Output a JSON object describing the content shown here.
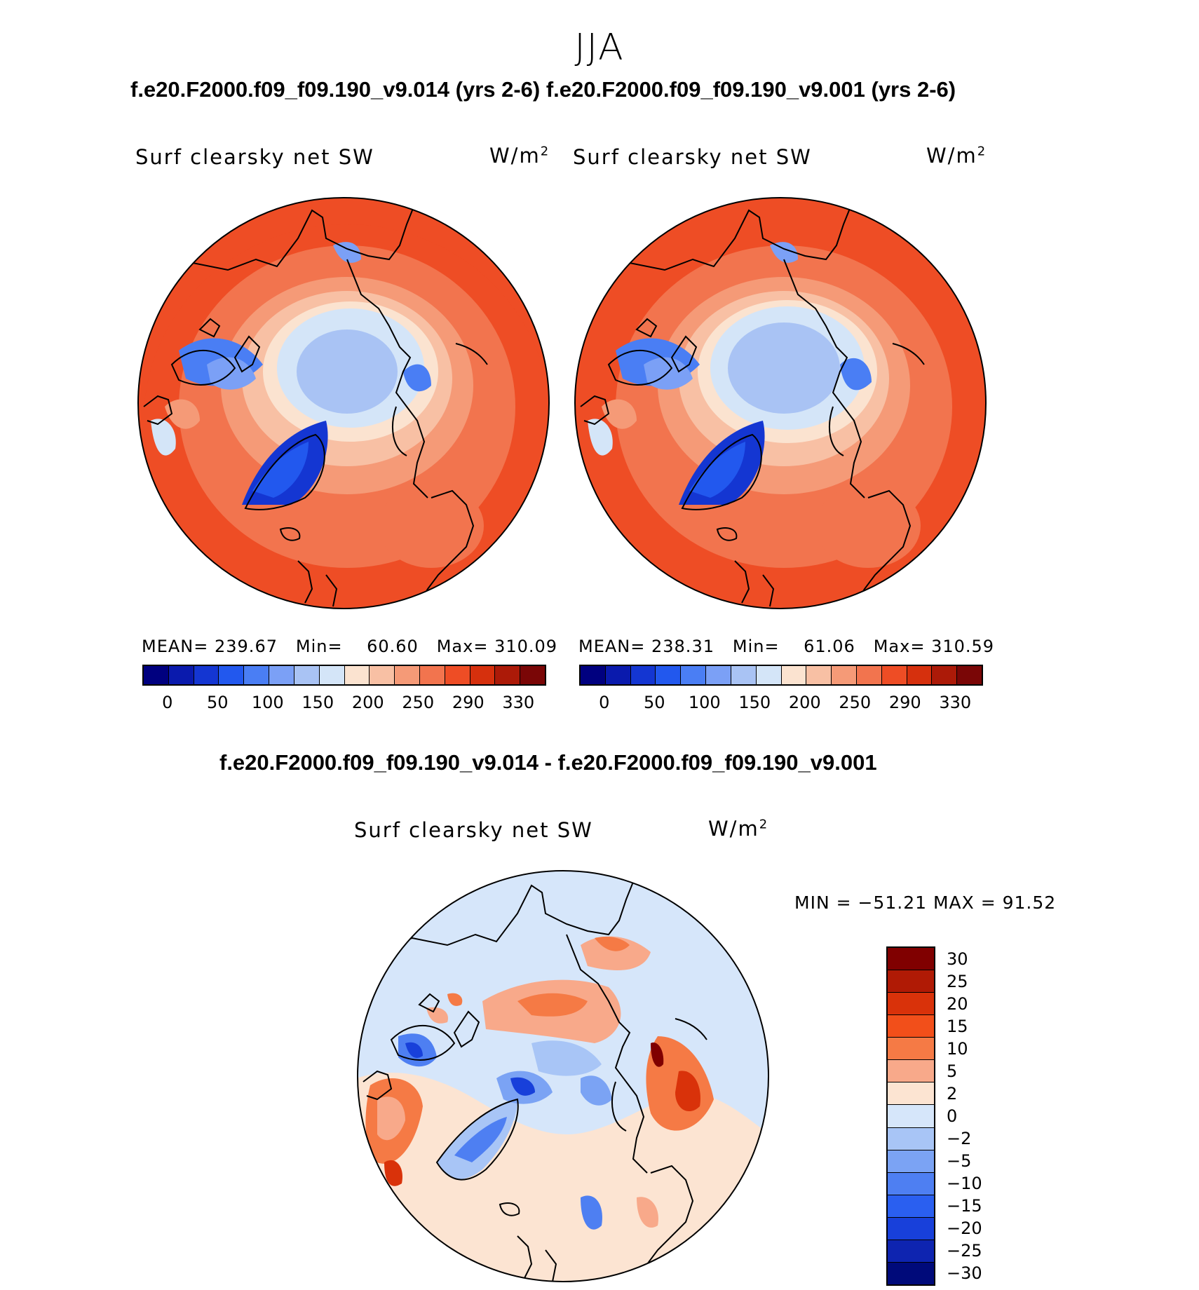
{
  "season": "JJA",
  "top_title": "f.e20.F2000.f09_f09.190_v9.014 (yrs 2-6) f.e20.F2000.f09_f09.190_v9.001 (yrs 2-6)",
  "diff_title": "f.e20.F2000.f09_f09.190_v9.014 - f.e20.F2000.f09_f09.190_v9.001",
  "panels": [
    {
      "label": "Surf clearsky net SW",
      "units": "W/m",
      "units_sup": "2",
      "mean_label": "MEAN=",
      "mean": "239.67",
      "min_label": "Min=",
      "min": "60.60",
      "max_label": "Max=",
      "max": "310.09"
    },
    {
      "label": "Surf clearsky net SW",
      "units": "W/m",
      "units_sup": "2",
      "mean_label": "MEAN=",
      "mean": "238.31",
      "min_label": "Min=",
      "min": "61.06",
      "max_label": "Max=",
      "max": "310.59"
    }
  ],
  "diff_panel": {
    "label": "Surf clearsky net SW",
    "units": "W/m",
    "units_sup": "2",
    "minmax": "MIN = −51.21  MAX =   91.52"
  },
  "field_colorbar": {
    "colors": [
      "#00007f",
      "#0a1aad",
      "#1436d2",
      "#2258ee",
      "#4a7ef4",
      "#7ba0f6",
      "#a9c3f4",
      "#d4e5f8",
      "#fbe3d0",
      "#f8c0a4",
      "#f59a77",
      "#f2744e",
      "#ee4d25",
      "#d6300d",
      "#ac1a08",
      "#7a0606"
    ],
    "ticks": [
      "0",
      "50",
      "100",
      "150",
      "200",
      "250",
      "290",
      "330"
    ]
  },
  "diff_colorbar": {
    "colors": [
      "#800000",
      "#b01a05",
      "#d9320a",
      "#f24f1a",
      "#f57a45",
      "#f8a98a",
      "#fce4d2",
      "#d6e6fa",
      "#a8c5f6",
      "#7ba3f4",
      "#4e7ff2",
      "#2a5ff0",
      "#1840da",
      "#0e24b0",
      "#000a7a"
    ],
    "ticks": [
      "30",
      "25",
      "20",
      "15",
      "10",
      "5",
      "2",
      "0",
      "−2",
      "−5",
      "−10",
      "−15",
      "−20",
      "−25",
      "−30"
    ]
  }
}
